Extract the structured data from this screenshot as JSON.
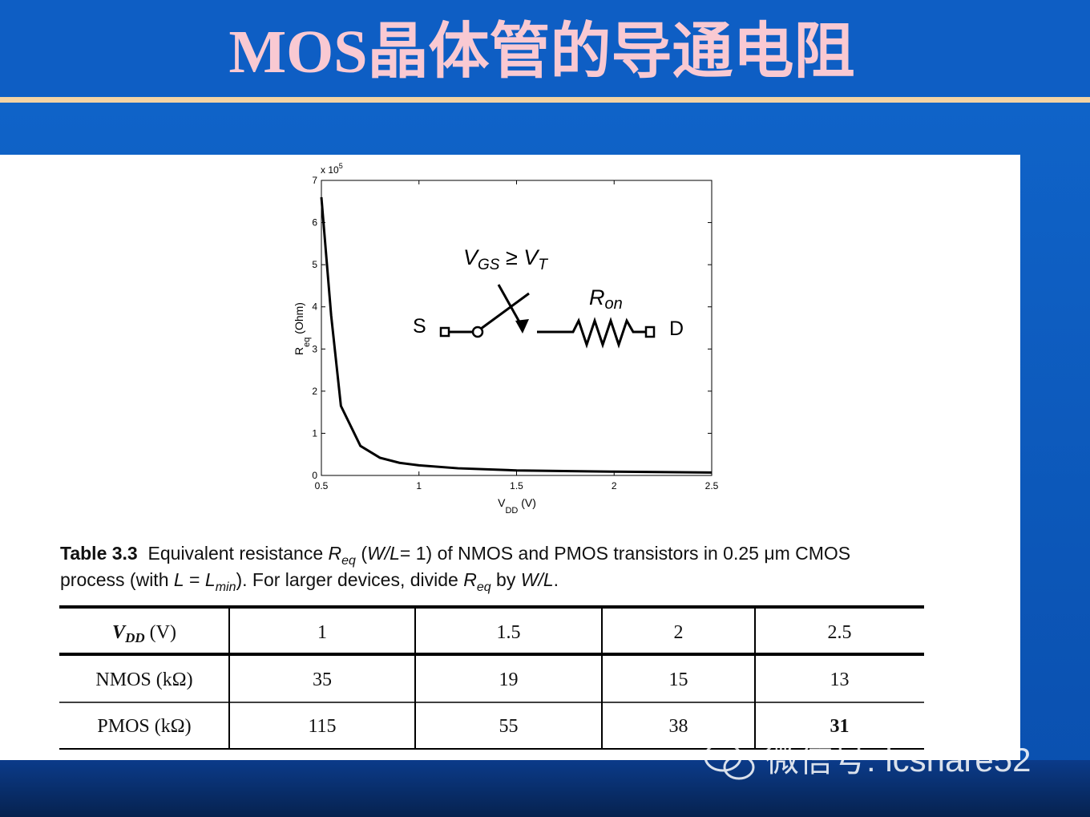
{
  "title": "MOS晶体管的导通电阻",
  "chart_data": {
    "type": "line",
    "x": [
      0.5,
      0.55,
      0.6,
      0.7,
      0.8,
      0.9,
      1.0,
      1.2,
      1.5,
      2.0,
      2.5
    ],
    "values": [
      6.6,
      3.8,
      1.65,
      0.7,
      0.42,
      0.3,
      0.24,
      0.17,
      0.12,
      0.09,
      0.07
    ],
    "color": "#000000",
    "xlim": [
      0.5,
      2.5
    ],
    "ylim": [
      0,
      7
    ],
    "xticks": [
      0.5,
      1,
      1.5,
      2,
      2.5
    ],
    "yticks": [
      0,
      1,
      2,
      3,
      4,
      5,
      6,
      7
    ],
    "y_multiplier": [
      "x 10",
      "5"
    ],
    "x_label": [
      "V",
      "DD",
      " (V)"
    ],
    "y_label": [
      "R",
      "eq",
      " (Ohm)"
    ],
    "annotations": {
      "condition": [
        "V",
        "GS",
        " ≥ V",
        "T"
      ],
      "resistor": [
        "R",
        "on"
      ],
      "source": "S",
      "drain": "D"
    }
  },
  "caption": [
    "Table 3.3",
    "  Equivalent resistance ",
    "R",
    "eq",
    " (",
    "W/L",
    "= 1) of NMOS and PMOS transistors in 0.25 μm CMOS",
    "process (with ",
    "L",
    " = ",
    "L",
    "min",
    "). For larger devices, divide ",
    "R",
    "eq",
    " by ",
    "W/L",
    "."
  ],
  "table": {
    "header_label": [
      "V",
      "DD",
      " (V)"
    ],
    "columns": [
      1,
      1.5,
      2,
      2.5
    ],
    "rows": [
      {
        "label": "NMOS  (kΩ)",
        "values": [
          35,
          19,
          15,
          13
        ]
      },
      {
        "label": "PMOS  (kΩ)",
        "values": [
          115,
          55,
          38,
          31
        ]
      }
    ]
  },
  "watermark": "微信号: icshare52"
}
